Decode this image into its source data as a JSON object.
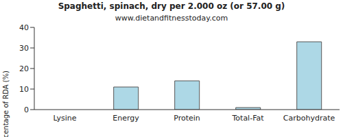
{
  "chart_data": {
    "type": "bar",
    "title": "Spaghetti, spinach, dry per 2.000 oz (or 57.00 g)",
    "subtitle": "www.dietandfitnesstoday.com",
    "y_label": "Percentage of RDA (%)",
    "categories": [
      "Lysine",
      "Energy",
      "Protein",
      "Total-Fat",
      "Carbohydrate"
    ],
    "values": [
      0,
      11,
      14,
      1,
      33
    ],
    "color": "#add8e6",
    "ylim": [
      0,
      40
    ],
    "yticks": [
      0,
      10,
      20,
      30,
      40
    ],
    "grid": false
  }
}
